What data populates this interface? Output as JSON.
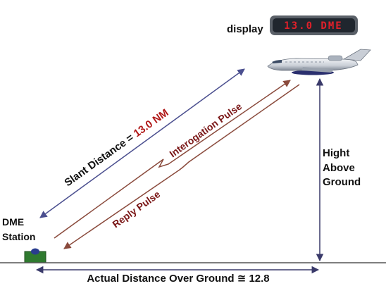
{
  "display": {
    "label": "display",
    "readout": "13.0 DME"
  },
  "slant": {
    "prefix": "Slant Distance = ",
    "value": "13.0 NM"
  },
  "interrogation_label": "Interogation Pulse",
  "reply_label": "Reply Pulse",
  "height": {
    "line1": "Hight",
    "line2": "Above",
    "line3": "Ground"
  },
  "station": {
    "line1": "DME",
    "line2": "Station"
  },
  "ground_distance_label": "Actual Distance Over Ground ≅ 12.8",
  "colors": {
    "slant_line": "#4b4f8f",
    "pulse_line": "#8a4a3c",
    "pulse_text": "#7a1616",
    "slant_value": "#b01818",
    "text": "#111111",
    "display_digits": "#e0202a",
    "display_bg": "#20262e",
    "station_box": "#2f7a2f"
  }
}
